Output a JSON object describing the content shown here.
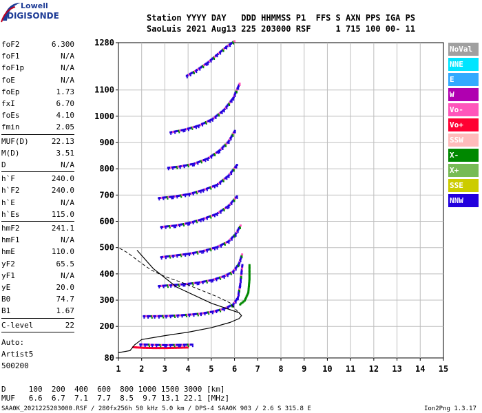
{
  "app": {
    "logo_line1": "Lowell",
    "logo_line2": "DIGISONDE",
    "version": "Ion2Png 1.3.17"
  },
  "header": {
    "line1": "Station YYYY DAY   DDD HHMMSS P1  FFS S AXN PPS IGA PS",
    "line2": "SaoLuis 2021 Aug13 225 203000 RSF     1 715 100 00- 11"
  },
  "scaled": {
    "group1": [
      {
        "k": "foF2",
        "v": "6.300"
      },
      {
        "k": "foF1",
        "v": "N/A"
      },
      {
        "k": "foF1p",
        "v": "N/A"
      },
      {
        "k": "foE",
        "v": "N/A"
      },
      {
        "k": "foEp",
        "v": "1.73"
      },
      {
        "k": "fxI",
        "v": "6.70"
      },
      {
        "k": "foEs",
        "v": "4.10"
      },
      {
        "k": "fmin",
        "v": "2.05"
      }
    ],
    "group2": [
      {
        "k": "MUF(D)",
        "v": "22.13"
      },
      {
        "k": "M(D)",
        "v": "3.51"
      },
      {
        "k": "D",
        "v": "N/A"
      }
    ],
    "group3": [
      {
        "k": "h`F",
        "v": "240.0"
      },
      {
        "k": "h`F2",
        "v": "240.0"
      },
      {
        "k": "h`E",
        "v": "N/A"
      },
      {
        "k": "h`Es",
        "v": "115.0"
      }
    ],
    "group4": [
      {
        "k": "hmF2",
        "v": "241.1"
      },
      {
        "k": "hmF1",
        "v": "N/A"
      },
      {
        "k": "hmE",
        "v": "110.0"
      },
      {
        "k": "yF2",
        "v": "65.5"
      },
      {
        "k": "yF1",
        "v": "N/A"
      },
      {
        "k": "yE",
        "v": "20.0"
      },
      {
        "k": "B0",
        "v": "74.7"
      },
      {
        "k": "B1",
        "v": "1.67"
      }
    ],
    "group5": [
      {
        "k": "C-level",
        "v": "22"
      }
    ],
    "autoscale": [
      "Auto:",
      "Artist5",
      "500200"
    ]
  },
  "legend": [
    {
      "label": "NoVal",
      "color": "#a0a0a0"
    },
    {
      "label": "NNE",
      "color": "#00e5ff"
    },
    {
      "label": "E",
      "color": "#33aaff"
    },
    {
      "label": "W",
      "color": "#b000b0"
    },
    {
      "label": "Vo-",
      "color": "#ff55bb"
    },
    {
      "label": "Vo+",
      "color": "#ff0033"
    },
    {
      "label": "SSW",
      "color": "#ffbbbb"
    },
    {
      "label": "X-",
      "color": "#008800"
    },
    {
      "label": "X+",
      "color": "#77bb55"
    },
    {
      "label": "SSE",
      "color": "#cccc00"
    },
    {
      "label": "NNW",
      "color": "#2200dd"
    }
  ],
  "footer": {
    "d_row": "D     100  200  400  600  800 1000 1500 3000 [km]",
    "muf_row": "MUF   6.6  6.7  7.1  7.7  8.5  9.7 13.1 22.1 [MHz]",
    "info": "SAA0K_2021225203000.RSF / 280fx256h 50 kHz 5.0 km / DPS-4 SAA0K 903 / 2.6 S 315.8 E"
  },
  "chart_data": {
    "type": "scatter",
    "title": "",
    "xlabel": "",
    "ylabel": "",
    "xlim": [
      1,
      15
    ],
    "ylim": [
      80,
      1280
    ],
    "x_ticks": [
      1,
      2,
      3,
      4,
      5,
      6,
      7,
      8,
      9,
      10,
      11,
      12,
      13,
      14,
      15
    ],
    "y_ticks": [
      80,
      200,
      300,
      400,
      500,
      600,
      700,
      800,
      900,
      1000,
      1100,
      1280
    ],
    "grid": true,
    "legend_position": "right",
    "traces": [
      {
        "name": "O-trace hop 1",
        "color": "#2200dd",
        "x": [
          2.05,
          2.5,
          3.0,
          3.5,
          4.0,
          4.5,
          5.0,
          5.5,
          5.9,
          6.1,
          6.2,
          6.3
        ],
        "y": [
          240,
          240,
          241,
          243,
          246,
          250,
          257,
          268,
          285,
          310,
          360,
          440
        ]
      },
      {
        "name": "O-trace hop 2",
        "color": "#2200dd",
        "x": [
          2.7,
          3.2,
          3.8,
          4.4,
          5.0,
          5.5,
          5.9,
          6.15,
          6.3
        ],
        "y": [
          355,
          358,
          362,
          368,
          378,
          392,
          410,
          440,
          480
        ]
      },
      {
        "name": "O-trace hop 3",
        "color": "#2200dd",
        "x": [
          2.8,
          3.3,
          4.0,
          4.6,
          5.2,
          5.7,
          6.0,
          6.25
        ],
        "y": [
          465,
          470,
          478,
          488,
          503,
          525,
          552,
          590
        ]
      },
      {
        "name": "O-trace hop 4",
        "color": "#2200dd",
        "x": [
          2.8,
          3.4,
          4.0,
          4.6,
          5.2,
          5.7,
          6.1
        ],
        "y": [
          580,
          585,
          595,
          610,
          630,
          660,
          700
        ]
      },
      {
        "name": "O-trace hop 5",
        "color": "#2200dd",
        "x": [
          2.7,
          3.3,
          4.0,
          4.6,
          5.2,
          5.7,
          6.1
        ],
        "y": [
          690,
          695,
          705,
          720,
          740,
          775,
          820
        ]
      },
      {
        "name": "O-trace hop 6",
        "color": "#2200dd",
        "x": [
          3.1,
          3.6,
          4.2,
          4.8,
          5.3,
          5.7,
          6.0
        ],
        "y": [
          805,
          810,
          820,
          840,
          870,
          905,
          950
        ]
      },
      {
        "name": "O-trace hop 7",
        "color": "#2200dd",
        "x": [
          3.2,
          3.8,
          4.4,
          5.0,
          5.5,
          5.9,
          6.2
        ],
        "y": [
          940,
          950,
          965,
          990,
          1025,
          1070,
          1130
        ]
      },
      {
        "name": "O-trace hop 8",
        "color": "#2200dd",
        "x": [
          3.9,
          4.3,
          4.8,
          5.2,
          5.6,
          6.0
        ],
        "y": [
          1155,
          1175,
          1205,
          1235,
          1265,
          1290
        ]
      },
      {
        "name": "X-trace",
        "color": "#008800",
        "x": [
          6.2,
          6.4,
          6.55,
          6.6,
          6.6
        ],
        "y": [
          285,
          300,
          330,
          380,
          440
        ]
      },
      {
        "name": "Es trace",
        "color": "#ff0033",
        "x": [
          1.6,
          2.0,
          2.5,
          3.0,
          3.5,
          4.0
        ],
        "y": [
          122,
          120,
          119,
          119,
          120,
          121
        ]
      },
      {
        "name": "Es trace 2",
        "color": "#2200dd",
        "x": [
          1.9,
          2.4,
          3.0,
          3.6,
          4.2
        ],
        "y": [
          133,
          131,
          130,
          131,
          132
        ]
      }
    ],
    "profile": {
      "name": "Electron density profile",
      "x": [
        1.0,
        1.5,
        1.7,
        2.0,
        3.0,
        4.0,
        5.0,
        5.8,
        6.2,
        6.3,
        6.2,
        5.0,
        3.5,
        2.5,
        1.8
      ],
      "y": [
        100,
        108,
        130,
        150,
        165,
        178,
        195,
        215,
        230,
        241,
        252,
        288,
        350,
        420,
        490
      ]
    },
    "profile_extrapolated": {
      "name": "Topside profile (dashed)",
      "x": [
        6.3,
        5.8,
        5.2,
        4.5,
        3.8,
        3.0,
        2.4,
        2.0,
        1.7,
        1.4,
        1.0
      ],
      "y": [
        241,
        290,
        315,
        340,
        365,
        390,
        415,
        440,
        460,
        480,
        500
      ]
    }
  }
}
